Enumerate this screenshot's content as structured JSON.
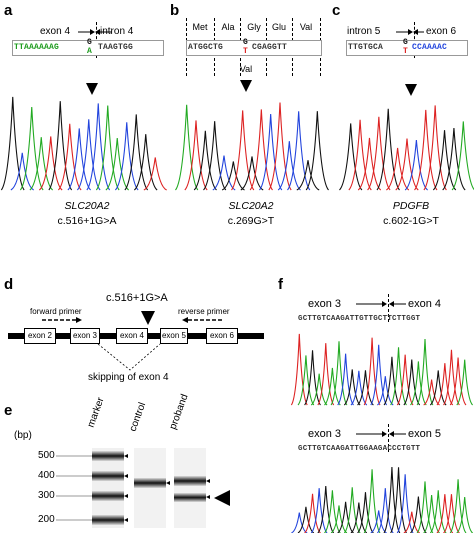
{
  "panels": {
    "a": {
      "letter": "a",
      "exon_label": "exon 4",
      "intron_label": "intron 4",
      "seq_left": "TTAAAAAAG",
      "seq_mid_top": "G",
      "seq_mid_bot": "A",
      "seq_right": "TAAGTGG",
      "gene": "SLC20A2",
      "mutation": "c.516+1G>A"
    },
    "b": {
      "letter": "b",
      "codons": [
        "Met",
        "Ala",
        "Gly",
        "Glu",
        "Val"
      ],
      "seq_left": "ATGGCTG",
      "seq_mid_top": "G",
      "seq_mid_bot": "T",
      "seq_right": "CGAGGTT",
      "alt_aa": "Val",
      "gene": "SLC20A2",
      "mutation": "c.269G>T"
    },
    "c": {
      "letter": "c",
      "intron_label": "intron 5",
      "exon_label": "exon 6",
      "seq_left": "TTGTGCA",
      "seq_mid_top": "G",
      "seq_mid_bot": "T",
      "seq_right": "CCAAAAC",
      "gene": "PDGFB",
      "mutation": "c.602-1G>T"
    },
    "d": {
      "letter": "d",
      "mutation": "c.516+1G>A",
      "forward_primer": "forward primer",
      "reverse_primer": "reverse primer",
      "exons": [
        "exon 2",
        "exon 3",
        "exon 4",
        "exon 5",
        "exon 6"
      ],
      "skipping_label": "skipping of exon 4"
    },
    "e": {
      "letter": "e",
      "unit": "(bp)",
      "ladder": [
        "500",
        "400",
        "300",
        "200"
      ],
      "lanes": [
        "marker",
        "control",
        "proband"
      ]
    },
    "f": {
      "letter": "f",
      "top": {
        "left_label": "exon 3",
        "right_label": "exon 4",
        "seq": "GCTTGTCAAGATTGTTGCTTCTTGGT"
      },
      "bottom": {
        "left_label": "exon 3",
        "right_label": "exon 5",
        "seq": "GCTTGTCAAGATTGGAAGACCCTGTT"
      }
    }
  },
  "colors": {
    "A": "#22aa22",
    "C": "#2244dd",
    "G": "#111111",
    "T": "#dd2222"
  }
}
